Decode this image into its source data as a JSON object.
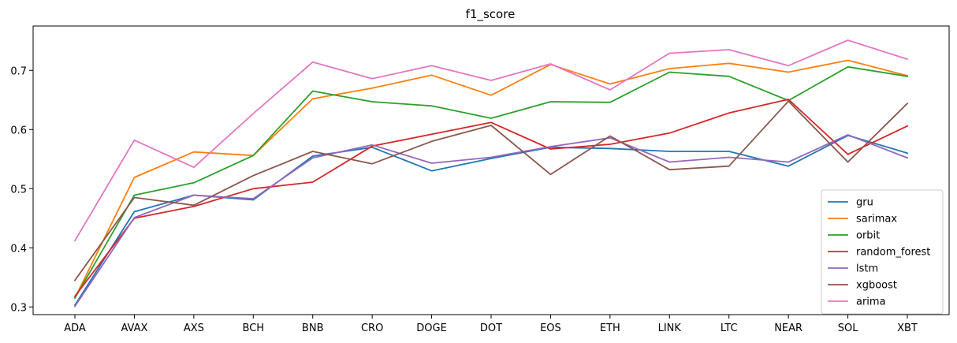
{
  "chart_data": {
    "type": "line",
    "title": "f1_score",
    "xlabel": "",
    "ylabel": "",
    "categories": [
      "ADA",
      "AVAX",
      "AXS",
      "BCH",
      "BNB",
      "CRO",
      "DOGE",
      "DOT",
      "EOS",
      "ETH",
      "LINK",
      "LTC",
      "NEAR",
      "SOL",
      "XBT"
    ],
    "ylim": [
      0.287,
      0.775
    ],
    "yticks": [
      0.3,
      0.4,
      0.5,
      0.6,
      0.7
    ],
    "ytick_labels": [
      "0.3",
      "0.4",
      "0.5",
      "0.6",
      "0.7"
    ],
    "grid": false,
    "legend_position": "lower-right",
    "series": [
      {
        "name": "gru",
        "color": "#1f77b4",
        "values": [
          0.303,
          0.461,
          0.489,
          0.481,
          0.555,
          0.57,
          0.53,
          0.551,
          0.57,
          0.568,
          0.563,
          0.563,
          0.538,
          0.59,
          0.56
        ]
      },
      {
        "name": "sarimax",
        "color": "#ff7f0e",
        "values": [
          0.315,
          0.519,
          0.562,
          0.556,
          0.652,
          0.67,
          0.692,
          0.658,
          0.71,
          0.677,
          0.703,
          0.712,
          0.697,
          0.717,
          0.691
        ]
      },
      {
        "name": "orbit",
        "color": "#2ca02c",
        "values": [
          0.315,
          0.489,
          0.51,
          0.556,
          0.665,
          0.647,
          0.64,
          0.619,
          0.647,
          0.646,
          0.697,
          0.69,
          0.649,
          0.706,
          0.69
        ]
      },
      {
        "name": "random_forest",
        "color": "#d62728",
        "values": [
          0.318,
          0.45,
          0.47,
          0.5,
          0.511,
          0.572,
          0.592,
          0.612,
          0.567,
          0.575,
          0.594,
          0.628,
          0.651,
          0.558,
          0.606
        ]
      },
      {
        "name": "lstm",
        "color": "#9467bd",
        "values": [
          0.301,
          0.451,
          0.489,
          0.483,
          0.552,
          0.574,
          0.543,
          0.553,
          0.571,
          0.586,
          0.545,
          0.553,
          0.545,
          0.591,
          0.552
        ]
      },
      {
        "name": "xgboost",
        "color": "#8c564b",
        "values": [
          0.345,
          0.485,
          0.472,
          0.522,
          0.563,
          0.542,
          0.58,
          0.607,
          0.524,
          0.589,
          0.532,
          0.538,
          0.648,
          0.545,
          0.644
        ]
      },
      {
        "name": "arima",
        "color": "#e377c2",
        "values": [
          0.412,
          0.582,
          0.536,
          0.627,
          0.714,
          0.686,
          0.708,
          0.683,
          0.711,
          0.667,
          0.729,
          0.735,
          0.708,
          0.751,
          0.719
        ]
      }
    ]
  }
}
